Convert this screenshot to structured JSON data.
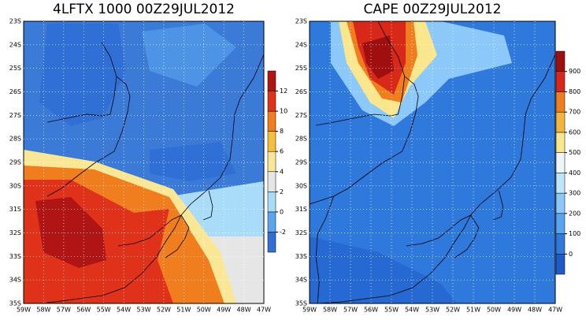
{
  "panels": [
    {
      "title": "4LFTX 1000 00Z29JUL2012",
      "lat_labels": [
        "23S",
        "24S",
        "25S",
        "26S",
        "27S",
        "28S",
        "29S",
        "30S",
        "31S",
        "32S",
        "33S",
        "34S",
        "35S"
      ],
      "lon_labels": [
        "59W",
        "58W",
        "57W",
        "56W",
        "55W",
        "54W",
        "53W",
        "52W",
        "51W",
        "50W",
        "49W",
        "48W",
        "47W"
      ],
      "colorbar": {
        "ticks": [
          -2,
          0,
          2,
          4,
          6,
          8,
          10,
          12
        ],
        "colors": [
          "#2f6fd6",
          "#5aa5f0",
          "#a8dcf8",
          "#e6e6e6",
          "#fae796",
          "#f5be3c",
          "#f07d1e",
          "#e0321a",
          "#b01414"
        ]
      }
    },
    {
      "title": "CAPE 00Z29JUL2012",
      "lat_labels": [
        "23S",
        "24S",
        "25S",
        "26S",
        "27S",
        "28S",
        "29S",
        "30S",
        "31S",
        "32S",
        "33S",
        "34S",
        "35S"
      ],
      "lon_labels": [
        "59W",
        "58W",
        "57W",
        "56W",
        "55W",
        "54W",
        "53W",
        "52W",
        "51W",
        "50W",
        "49W",
        "48W",
        "47W"
      ],
      "colorbar": {
        "ticks": [
          0,
          100,
          200,
          300,
          400,
          500,
          600,
          700,
          800,
          900
        ],
        "colors": [
          "#1e5ac8",
          "#2f78dc",
          "#5aa5f0",
          "#8cc8fa",
          "#bee6fa",
          "#f0f5f5",
          "#fae68c",
          "#f5b43c",
          "#f07d1e",
          "#d7281a",
          "#a00f0f"
        ]
      }
    }
  ]
}
